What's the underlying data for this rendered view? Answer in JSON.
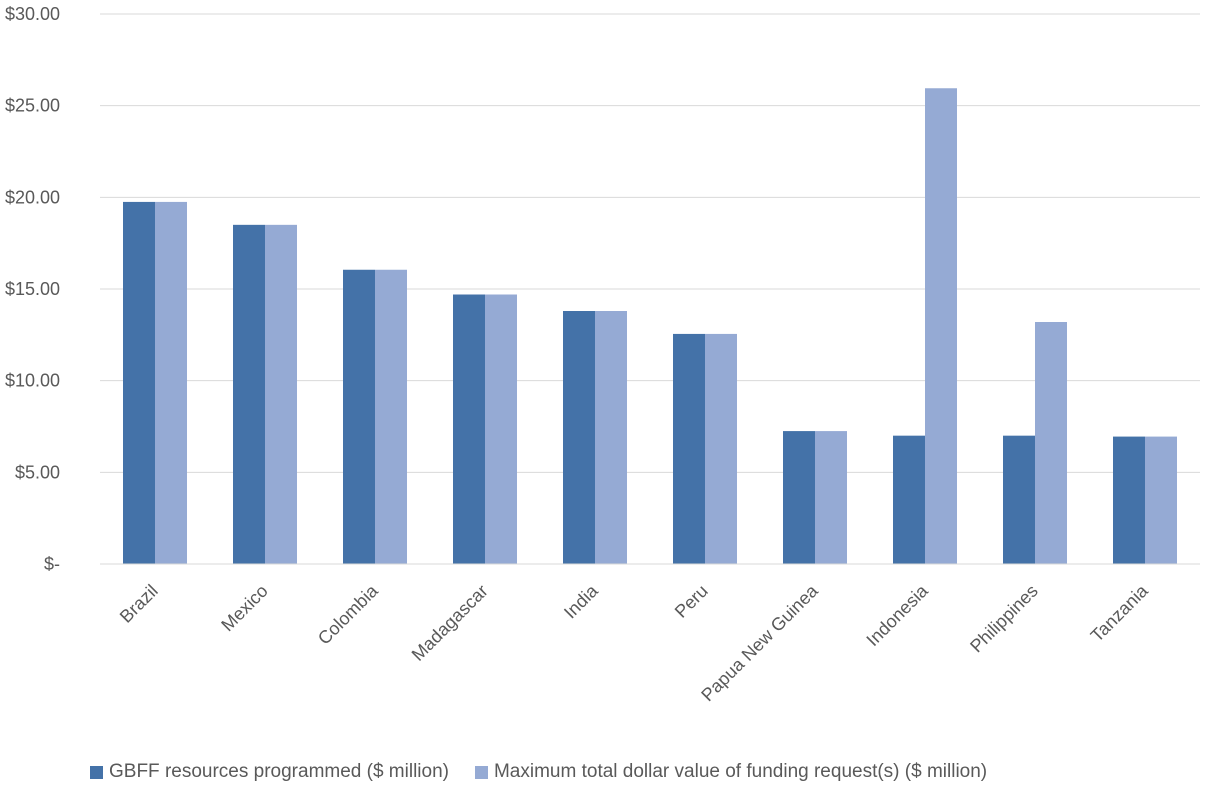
{
  "chart_data": {
    "type": "bar",
    "title": "",
    "xlabel": "",
    "ylabel": "",
    "categories": [
      "Brazil",
      "Mexico",
      "Colombia",
      "Madagascar",
      "India",
      "Peru",
      "Papua New Guinea",
      "Indonesia",
      "Philippines",
      "Tanzania"
    ],
    "series": [
      {
        "name": "GBFF resources programmed ($ million)",
        "color": "#4472A8",
        "values": [
          19.75,
          18.5,
          16.05,
          14.7,
          13.8,
          12.55,
          7.25,
          7.0,
          7.0,
          6.95
        ]
      },
      {
        "name": "Maximum total dollar value of funding request(s) ($ million)",
        "color": "#95AAD4",
        "values": [
          19.75,
          18.5,
          16.05,
          14.7,
          13.8,
          12.55,
          7.25,
          25.95,
          13.2,
          6.95
        ]
      }
    ],
    "ylim": [
      0,
      30
    ],
    "yticks": [
      0,
      5,
      10,
      15,
      20,
      25,
      30
    ],
    "ytick_labels": [
      "$-",
      "$5.00",
      "$10.00",
      "$15.00",
      "$20.00",
      "$25.00",
      "$30.00"
    ],
    "grid": true,
    "legend_position": "bottom"
  }
}
